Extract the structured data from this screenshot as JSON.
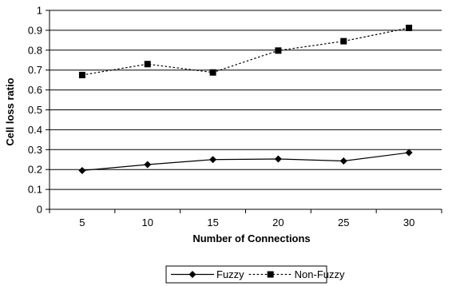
{
  "chart_data": {
    "type": "line",
    "title": "",
    "xlabel": "Number of Connections",
    "ylabel": "Cell loss ratio",
    "categories": [
      "5",
      "10",
      "15",
      "20",
      "25",
      "30"
    ],
    "ylim": [
      0,
      1
    ],
    "yticks": [
      "0",
      "0.1",
      "0.2",
      "0.3",
      "0.4",
      "0.5",
      "0.6",
      "0.7",
      "0.8",
      "0.9",
      "1"
    ],
    "grid": "horizontal",
    "legend_position": "bottom",
    "series": [
      {
        "name": "Fuzzy",
        "values": [
          0.195,
          0.225,
          0.25,
          0.253,
          0.243,
          0.285
        ],
        "marker": "diamond",
        "line_style": "solid",
        "color": "#000000"
      },
      {
        "name": "Non-Fuzzy",
        "values": [
          0.675,
          0.73,
          0.688,
          0.798,
          0.845,
          0.912
        ],
        "marker": "square",
        "line_style": "dotted",
        "color": "#000000"
      }
    ]
  }
}
